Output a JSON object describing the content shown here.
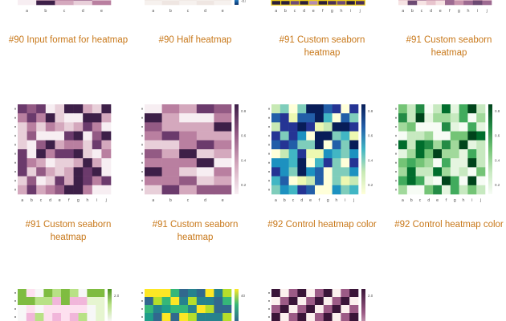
{
  "gallery": {
    "items": [
      {
        "title": "#90 Input format for heatmap",
        "kind": "purples",
        "ticks": [
          "a",
          "b",
          "c",
          "d",
          "e"
        ],
        "bar": false
      },
      {
        "title": "#90 Half heatmap",
        "kind": "blues-partial",
        "ticks": [
          "a",
          "b",
          "c",
          "d",
          "e"
        ],
        "bar": true,
        "bar_labels": [
          "-0.8"
        ]
      },
      {
        "title": "#91 Custom seaborn heatmap",
        "kind": "yellow-grid",
        "ticks": [
          "a",
          "b",
          "c",
          "d",
          "e",
          "f",
          "g",
          "h",
          "i",
          "j"
        ],
        "bar": false
      },
      {
        "title": "#91 Custom seaborn heatmap",
        "kind": "pink-partial",
        "ticks": [
          "a",
          "b",
          "c",
          "d",
          "e",
          "f",
          "g",
          "h",
          "i",
          "j"
        ],
        "bar": false
      },
      {
        "title": "#91 Custom seaborn heatmap",
        "kind": "purples",
        "ticks": [
          "a",
          "b",
          "c",
          "d",
          "e",
          "f",
          "g",
          "h",
          "i",
          "j"
        ],
        "bar": false
      },
      {
        "title": "#91 Custom seaborn heatmap",
        "kind": "purples",
        "ticks": [
          "a",
          "b",
          "c",
          "d",
          "e"
        ],
        "bar": true,
        "bar_labels": [
          "0.8",
          "0.6",
          "0.4",
          "0.2"
        ]
      },
      {
        "title": "#92 Control heatmap color",
        "kind": "ygnbu",
        "ticks": [
          "a",
          "b",
          "c",
          "d",
          "e",
          "f",
          "g",
          "h",
          "i",
          "j"
        ],
        "bar": true,
        "bar_labels": [
          "0.8",
          "0.6",
          "0.4",
          "0.2"
        ]
      },
      {
        "title": "#92 Control heatmap color",
        "kind": "greens",
        "ticks": [
          "a",
          "b",
          "c",
          "d",
          "e",
          "f",
          "g",
          "h",
          "i",
          "j"
        ],
        "bar": true,
        "bar_labels": [
          "0.8",
          "0.6",
          "0.4",
          "0.2"
        ]
      },
      {
        "title": "",
        "kind": "piyg",
        "ticks": [],
        "bar": true,
        "bar_labels": [
          "2.0",
          "1.5"
        ]
      },
      {
        "title": "",
        "kind": "viridis",
        "ticks": [],
        "bar": true,
        "bar_labels": [
          "40",
          "20"
        ]
      },
      {
        "title": "",
        "kind": "checker",
        "ticks": [],
        "bar": true,
        "bar_labels": [
          "2.0",
          "1.5"
        ]
      }
    ]
  },
  "colors": {
    "caption": "#c8781a"
  }
}
